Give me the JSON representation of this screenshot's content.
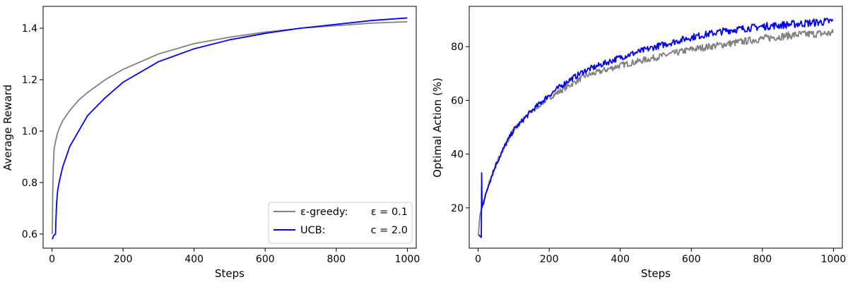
{
  "chart_data": [
    {
      "type": "line",
      "xlabel": "Steps",
      "ylabel": "Average Reward",
      "xlim": [
        -25,
        1025
      ],
      "ylim": [
        0.545,
        1.485
      ],
      "xticks": [
        0,
        200,
        400,
        600,
        800,
        1000
      ],
      "yticks": [
        0.6,
        0.8,
        1.0,
        1.2,
        1.4
      ],
      "ytick_labels": [
        "0.6",
        "0.8",
        "1.0",
        "1.2",
        "1.4"
      ],
      "grid": false,
      "legend": "bottom-right",
      "series": [
        {
          "name": "ε-greedy: ε = 0.1",
          "color": "#808080",
          "x": [
            1,
            2,
            4,
            6,
            10,
            15,
            20,
            30,
            50,
            75,
            100,
            150,
            200,
            250,
            300,
            400,
            500,
            600,
            700,
            800,
            900,
            1000
          ],
          "y": [
            0.6,
            0.76,
            0.87,
            0.93,
            0.96,
            0.99,
            1.01,
            1.04,
            1.08,
            1.12,
            1.15,
            1.2,
            1.24,
            1.27,
            1.3,
            1.34,
            1.365,
            1.385,
            1.4,
            1.41,
            1.42,
            1.425
          ]
        },
        {
          "name": "UCB: c = 2.0",
          "color": "#0000ee",
          "x": [
            1,
            5,
            10,
            11,
            13,
            16,
            20,
            25,
            30,
            40,
            50,
            75,
            100,
            150,
            200,
            250,
            300,
            400,
            500,
            600,
            700,
            800,
            900,
            1000
          ],
          "y": [
            0.58,
            0.595,
            0.6,
            0.65,
            0.72,
            0.77,
            0.8,
            0.83,
            0.86,
            0.9,
            0.94,
            1.0,
            1.06,
            1.13,
            1.19,
            1.23,
            1.27,
            1.32,
            1.355,
            1.38,
            1.4,
            1.415,
            1.43,
            1.44
          ]
        }
      ],
      "legend_entries": [
        {
          "label": "ε-greedy:",
          "param": "ε = 0.1",
          "color": "#808080"
        },
        {
          "label": "UCB:",
          "param": "c = 2.0",
          "color": "#0000ee"
        }
      ]
    },
    {
      "type": "line",
      "xlabel": "Steps",
      "ylabel": "Optimal Action (%)",
      "xlim": [
        -25,
        1025
      ],
      "ylim": [
        5,
        95
      ],
      "xticks": [
        0,
        200,
        400,
        600,
        800,
        1000
      ],
      "yticks": [
        20,
        40,
        60,
        80
      ],
      "grid": false,
      "series": [
        {
          "name": "ε-greedy: ε = 0.1",
          "color": "#808080",
          "x": [
            1,
            3,
            5,
            8,
            10,
            15,
            20,
            30,
            50,
            75,
            100,
            150,
            200,
            250,
            300,
            400,
            500,
            600,
            700,
            800,
            900,
            1000
          ],
          "y": [
            10,
            14,
            17,
            19,
            20,
            22,
            24,
            29,
            36,
            43,
            49,
            56,
            61,
            65,
            69,
            73,
            76,
            79,
            81,
            83,
            84.5,
            85
          ]
        },
        {
          "name": "UCB: c = 2.0",
          "color": "#0000ee",
          "x": [
            1,
            5,
            9,
            10,
            11,
            12,
            15,
            20,
            30,
            50,
            75,
            100,
            150,
            200,
            250,
            300,
            400,
            500,
            600,
            700,
            800,
            900,
            1000
          ],
          "y": [
            10,
            9.5,
            9,
            33,
            20,
            21,
            22,
            24,
            29,
            36,
            43,
            49,
            56,
            62,
            67,
            71,
            76,
            80,
            83.5,
            86,
            87.5,
            88.5,
            89.5
          ]
        }
      ]
    }
  ]
}
